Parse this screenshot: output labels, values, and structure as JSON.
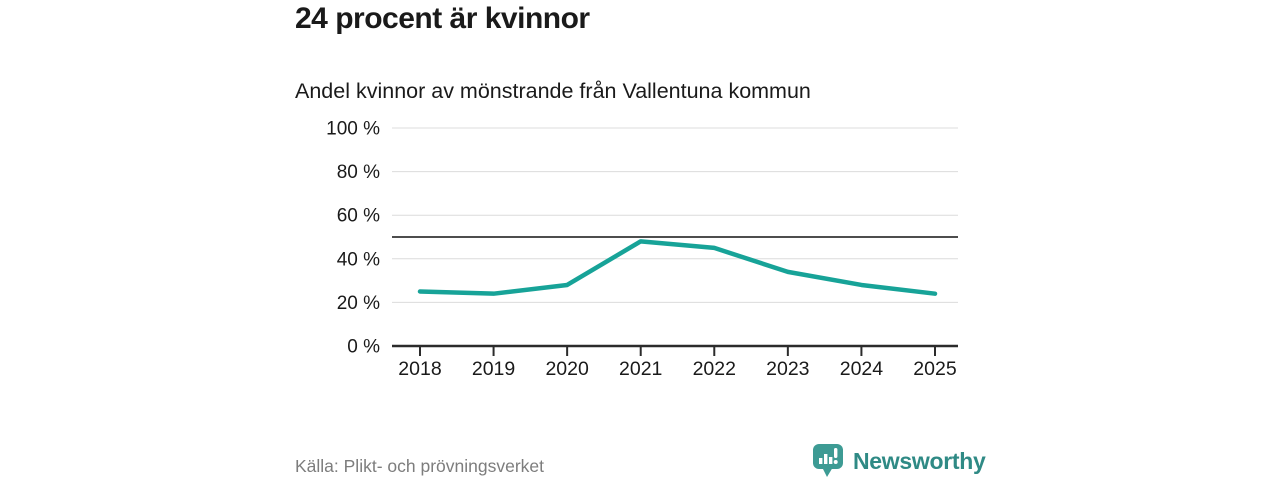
{
  "header": {
    "title": "24 procent är kvinnor"
  },
  "chart_data": {
    "type": "line",
    "title": "Andel kvinnor av mönstrande från Vallentuna kommun",
    "categories": [
      "2018",
      "2019",
      "2020",
      "2021",
      "2022",
      "2023",
      "2024",
      "2025"
    ],
    "series": [
      {
        "name": "Andel kvinnor av mönstrande",
        "values": [
          25,
          24,
          28,
          48,
          45,
          34,
          28,
          24
        ]
      }
    ],
    "xlabel": "",
    "ylabel": "",
    "ylim": [
      0,
      100
    ],
    "yticks": [
      0,
      20,
      40,
      60,
      80,
      100
    ],
    "ytick_format": "{v} %",
    "reference_line": 50,
    "grid": true,
    "legend": "none",
    "line_color": "#17a398",
    "grid_color": "#dcdcdc",
    "reference_line_color": "#4d4d4d",
    "axis_color": "#2b2b2b",
    "tick_label_color": "#1a1a1a"
  },
  "footer": {
    "source": "Källa: Plikt- och prövningsverket",
    "brand": "Newsworthy"
  },
  "colors": {
    "accent": "#17a398",
    "brand": "#2f8a85",
    "brand_icon": "#3d9b94",
    "title": "#1a1a1a",
    "source": "#7d7d7d"
  }
}
